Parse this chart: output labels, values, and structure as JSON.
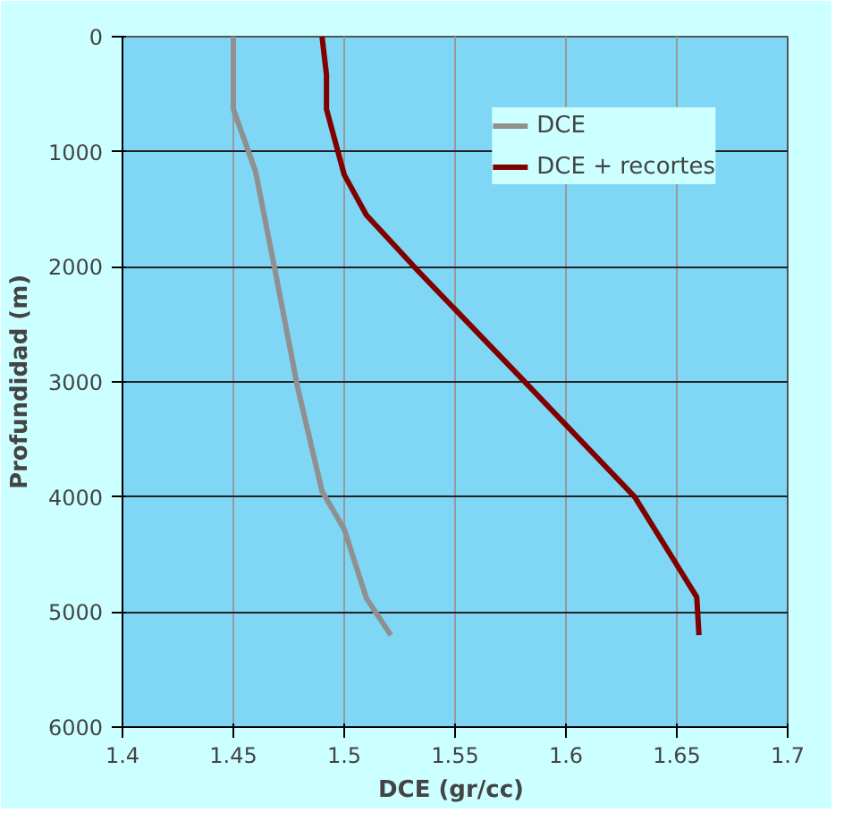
{
  "chart_data": {
    "type": "line",
    "xlabel": "DCE  (gr/cc)",
    "ylabel": "Profundidad (m)",
    "xlim": [
      1.4,
      1.7
    ],
    "xticks": [
      1.4,
      1.45,
      1.5,
      1.55,
      1.6,
      1.65,
      1.7
    ],
    "ylim": [
      6000,
      0
    ],
    "yticks": [
      0,
      1000,
      2000,
      3000,
      4000,
      5000,
      6000
    ],
    "grid": true,
    "legend": "top right",
    "line_style": "solid",
    "series": [
      {
        "name": "DCE",
        "color": "#909090",
        "x": [
          1.45,
          1.45,
          1.46,
          1.469,
          1.479,
          1.49,
          1.5,
          1.51,
          1.521
        ],
        "values": [
          0,
          630,
          1170,
          2050,
          3050,
          3950,
          4280,
          4880,
          5200
        ]
      },
      {
        "name": "DCE + recortes",
        "color": "#800000",
        "x": [
          1.49,
          1.492,
          1.492,
          1.5,
          1.51,
          1.534,
          1.579,
          1.631,
          1.659,
          1.66
        ],
        "values": [
          0,
          330,
          630,
          1200,
          1550,
          2050,
          2950,
          4000,
          4870,
          5200
        ]
      }
    ]
  }
}
